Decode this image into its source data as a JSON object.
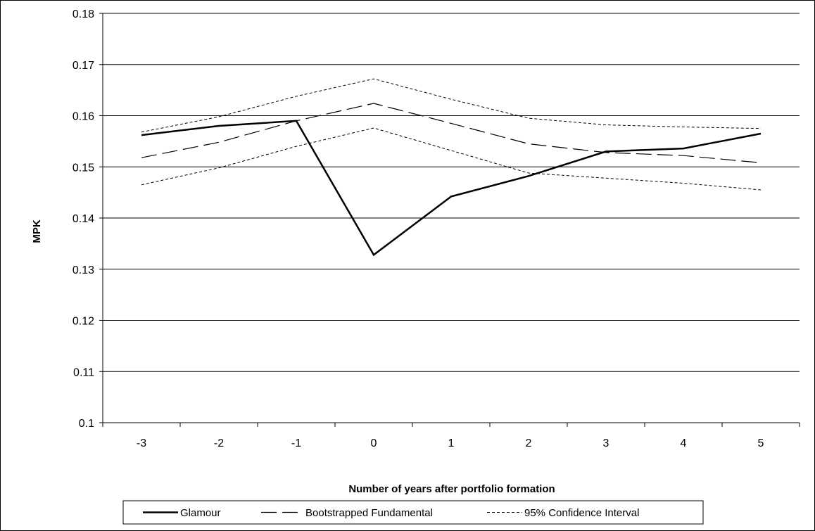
{
  "chart_data": {
    "type": "line",
    "title": "",
    "xlabel": "Number of years after portfolio formation",
    "ylabel": "MPK",
    "x": [
      -3,
      -2,
      -1,
      0,
      1,
      2,
      3,
      4,
      5
    ],
    "xticks": [
      "-3",
      "-2",
      "-1",
      "0",
      "1",
      "2",
      "3",
      "4",
      "5"
    ],
    "ylim": [
      0.1,
      0.18
    ],
    "yticks": [
      "0.1",
      "0.11",
      "0.12",
      "0.13",
      "0.14",
      "0.15",
      "0.16",
      "0.17",
      "0.18"
    ],
    "grid": "horizontal",
    "legend_position": "bottom",
    "series": [
      {
        "name": "Glamour",
        "style": "solid",
        "color": "#000000",
        "values": [
          0.1562,
          0.158,
          0.159,
          0.1328,
          0.1442,
          0.1482,
          0.153,
          0.1536,
          0.1565
        ]
      },
      {
        "name": "Bootstrapped Fundamental",
        "style": "long-dash",
        "color": "#000000",
        "values": [
          0.1518,
          0.1548,
          0.159,
          0.1624,
          0.1585,
          0.1545,
          0.1528,
          0.1522,
          0.1508
        ]
      },
      {
        "name": "95% Confidence Interval",
        "style": "dotted",
        "color": "#000000",
        "values": [
          0.1568,
          0.1598,
          0.1638,
          0.1672,
          0.1632,
          0.1595,
          0.1582,
          0.1578,
          0.1575
        ]
      },
      {
        "name": "",
        "style": "dotted",
        "color": "#000000",
        "values": [
          0.1465,
          0.1498,
          0.154,
          0.1576,
          0.1532,
          0.1488,
          0.1478,
          0.1468,
          0.1455
        ]
      }
    ]
  },
  "legend": {
    "items": [
      "Glamour",
      "Bootstrapped Fundamental",
      "95% Confidence Interval"
    ]
  }
}
